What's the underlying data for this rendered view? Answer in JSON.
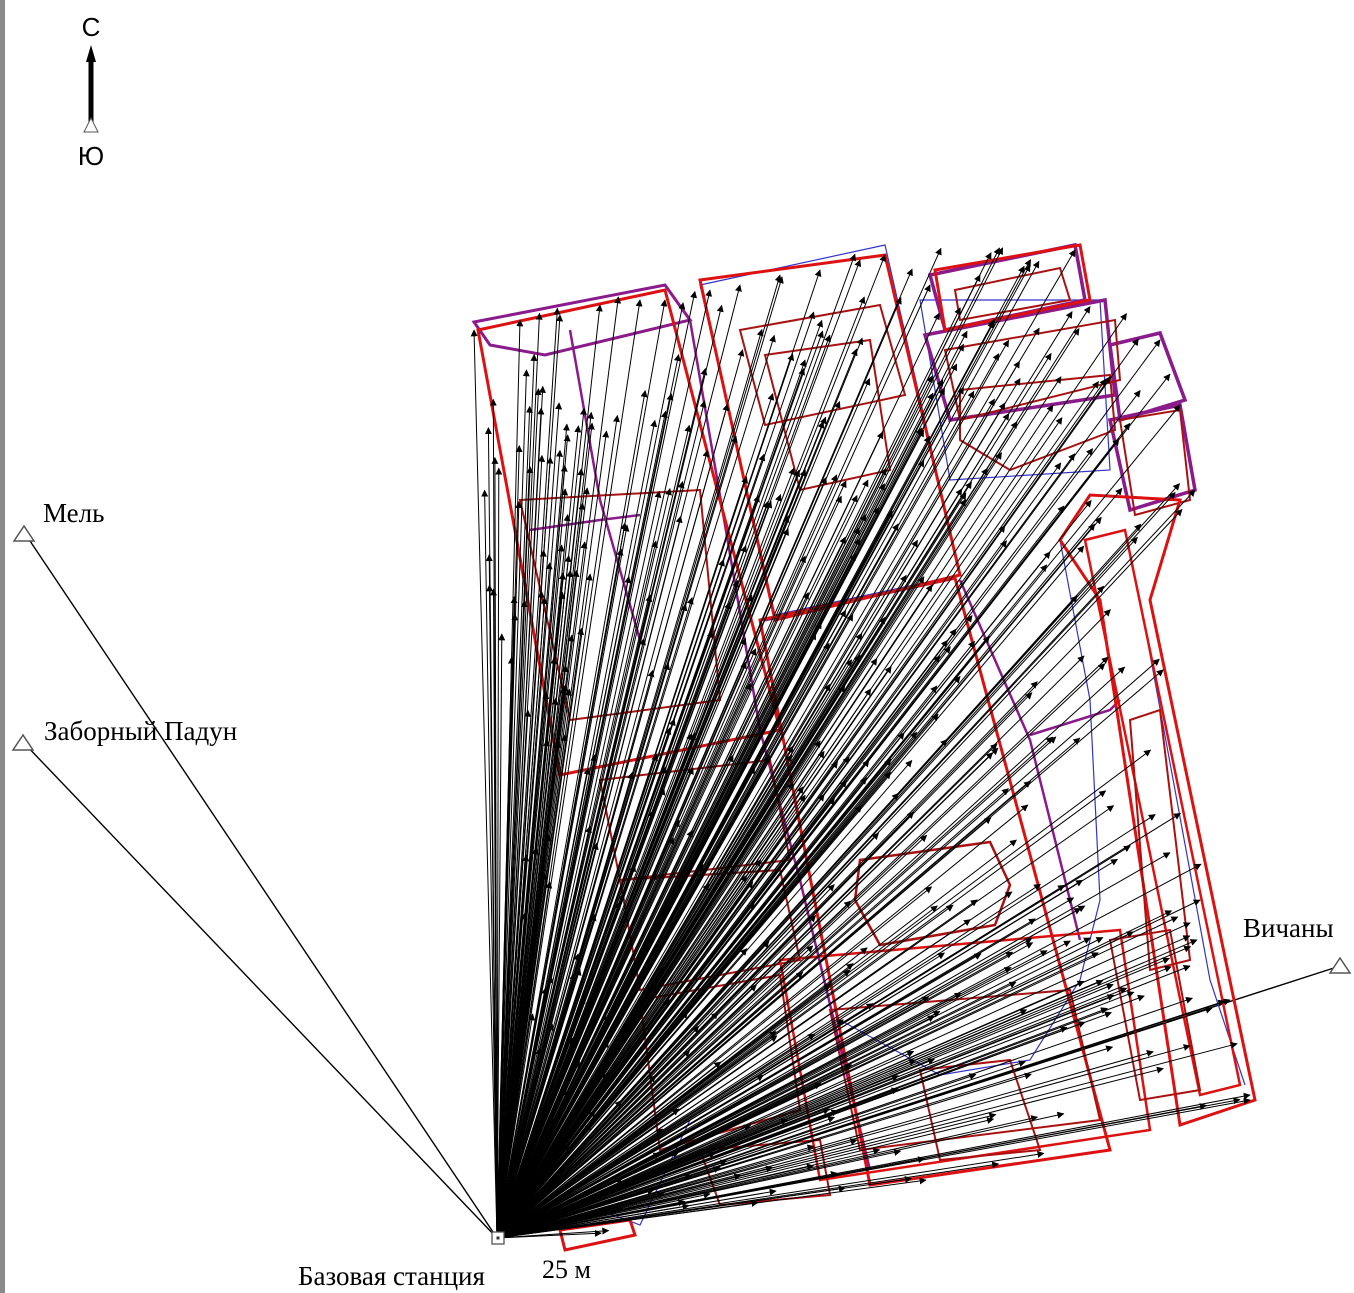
{
  "north_arrow": {
    "north_label": "С",
    "south_label": "Ю"
  },
  "stations": {
    "mel": "Мель",
    "zaborny_padun": "Заборный Падун",
    "vichany": "Вичаны",
    "base": "Базовая станция"
  },
  "scale": {
    "label": "25 м"
  },
  "colors": {
    "vectors": "#000000",
    "outline_red": "#dd1111",
    "outline_purple": "#8b1a8b",
    "outline_blue": "#3333cc",
    "outline_darkred": "#aa1111"
  }
}
